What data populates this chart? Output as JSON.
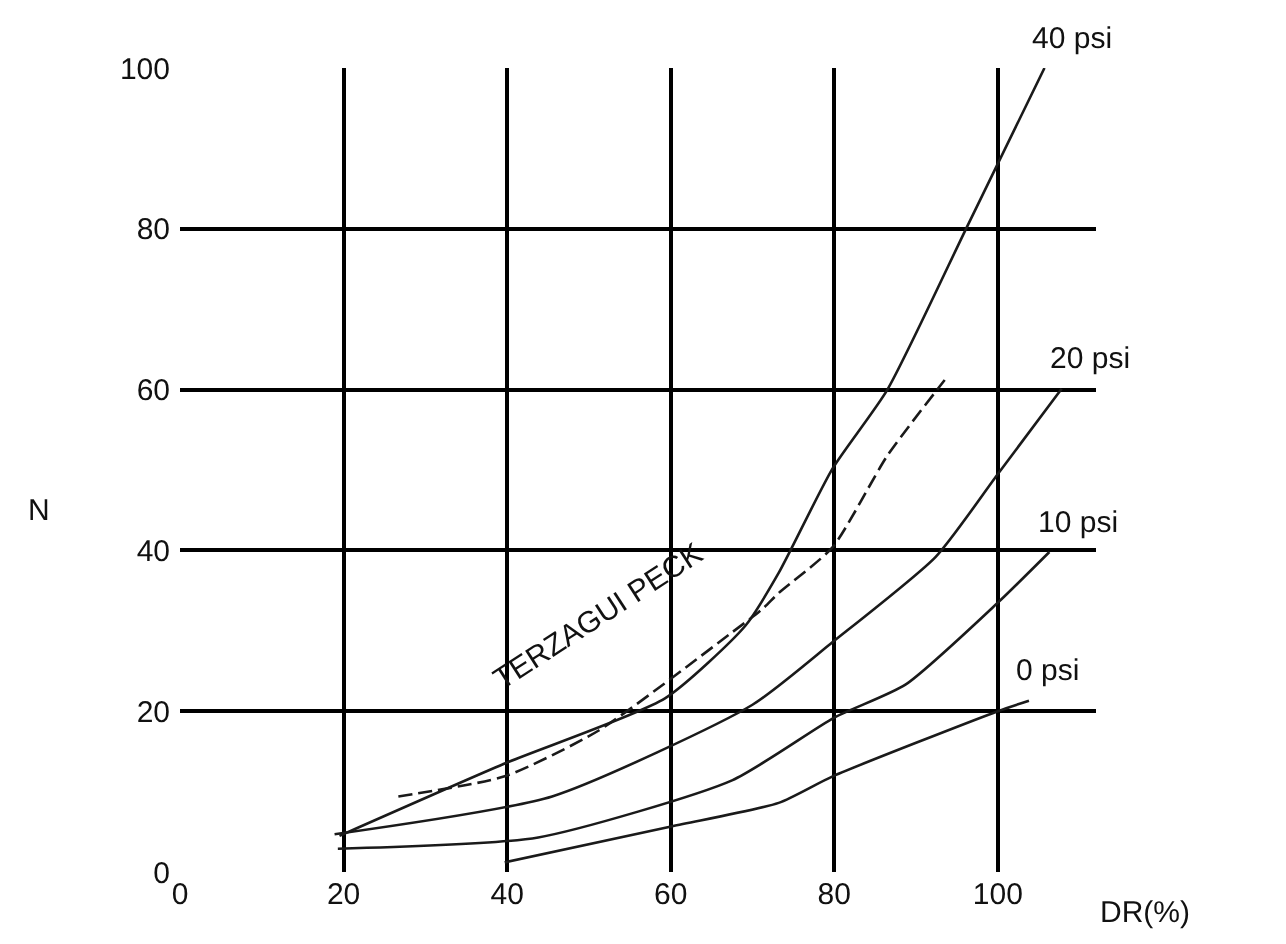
{
  "chart_data": {
    "type": "line",
    "xlabel": "DR(%)",
    "ylabel": "N",
    "xlim": [
      0,
      112
    ],
    "ylim": [
      0,
      100
    ],
    "xticks": [
      0,
      20,
      40,
      60,
      80,
      100
    ],
    "yticks": [
      0,
      20,
      40,
      60,
      80,
      100
    ],
    "grid": true,
    "legend": false,
    "marker": "none",
    "series": [
      {
        "name": "0 psi",
        "color": "#1a1a1a",
        "line_style": "solid",
        "x": [
          39.7,
          60.2,
          73.2,
          79.8,
          100,
          103.8
        ],
        "values": [
          1.2,
          5.7,
          8.6,
          11.9,
          20,
          21.3
        ]
      },
      {
        "name": "10 psi",
        "color": "#1a1a1a",
        "line_style": "solid",
        "x": [
          19.3,
          43.8,
          67.5,
          80,
          88.7,
          100,
          106.3
        ],
        "values": [
          2.9,
          4.3,
          11.4,
          19.2,
          23.3,
          33.5,
          39.8
        ]
      },
      {
        "name": "20 psi",
        "color": "#1a1a1a",
        "line_style": "solid",
        "x": [
          18.9,
          45.5,
          70,
          79.8,
          92.4,
          100,
          107.8
        ],
        "values": [
          4.7,
          9.4,
          20.8,
          28.6,
          39.2,
          49.5,
          60.1
        ]
      },
      {
        "name": "40 psi",
        "color": "#1a1a1a",
        "line_style": "solid",
        "x": [
          19.5,
          39.7,
          59.3,
          69.1,
          73.2,
          79.8,
          86.5,
          96.3,
          105.7
        ],
        "values": [
          4.5,
          13.5,
          21.6,
          30.6,
          37.2,
          50.2,
          60,
          80.4,
          100
        ]
      },
      {
        "color": "#1a1a1a",
        "line_style": "dashed",
        "x": [
          26.7,
          39.7,
          51.2,
          67.5,
          71.2,
          73.2,
          79.8,
          86.5,
          93.5
        ],
        "values": [
          9.4,
          11.9,
          17.6,
          29.8,
          32.7,
          34.7,
          40.4,
          51.8,
          61.2
        ]
      }
    ],
    "annotations": [
      "TERZAGUI PECK"
    ]
  }
}
